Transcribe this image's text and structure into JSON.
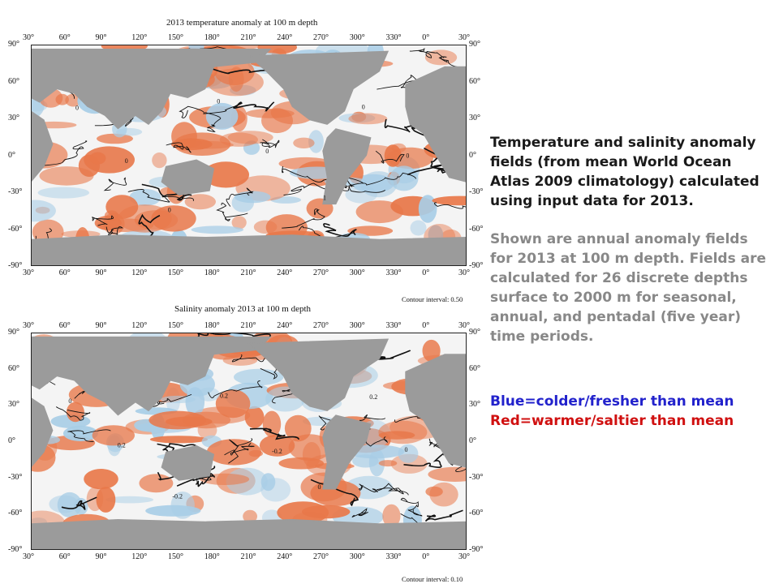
{
  "maps": [
    {
      "id": "temperature",
      "title": "2013 temperature anomaly at 100 m depth",
      "contour_interval": "Contour interval: 0.50",
      "contour_labels": [
        "0",
        "0",
        "0",
        "0",
        "0",
        "1",
        "0",
        "0"
      ]
    },
    {
      "id": "salinity",
      "title": "Salinity anomaly 2013 at 100 m depth",
      "contour_interval": "Contour interval: 0.10",
      "contour_labels": [
        "0",
        "0.2",
        "-0.2",
        "0.2",
        "-0.2",
        "0",
        "0.2",
        "0"
      ]
    }
  ],
  "axes": {
    "lon_labels": [
      "30°",
      "60°",
      "90°",
      "120°",
      "150°",
      "180°",
      "210°",
      "240°",
      "270°",
      "300°",
      "330°",
      "0°",
      "30°"
    ],
    "lat_labels": [
      "90°",
      "60°",
      "30°",
      "0°",
      "-30°",
      "-60°",
      "-90°"
    ]
  },
  "description": {
    "paragraph1": "Temperature and salinity anomaly fields (from mean World Ocean Atlas 2009 climatology) calculated using input data for 2013.",
    "paragraph2": "Shown are annual anomaly fields for 2013 at 100 m depth.  Fields are calculated for 26 discrete depths surface to 2000 m for seasonal, annual, and pentadal (five year) time periods."
  },
  "legend": {
    "blue_text": "Blue=colder/fresher than mean",
    "red_text": "Red=warmer/saltier than mean",
    "blue_color": "#2222cc",
    "red_color": "#d01010"
  },
  "colors": {
    "land": "#9b9b9b",
    "warm": "#e8784a",
    "cool": "#a8cde6"
  }
}
